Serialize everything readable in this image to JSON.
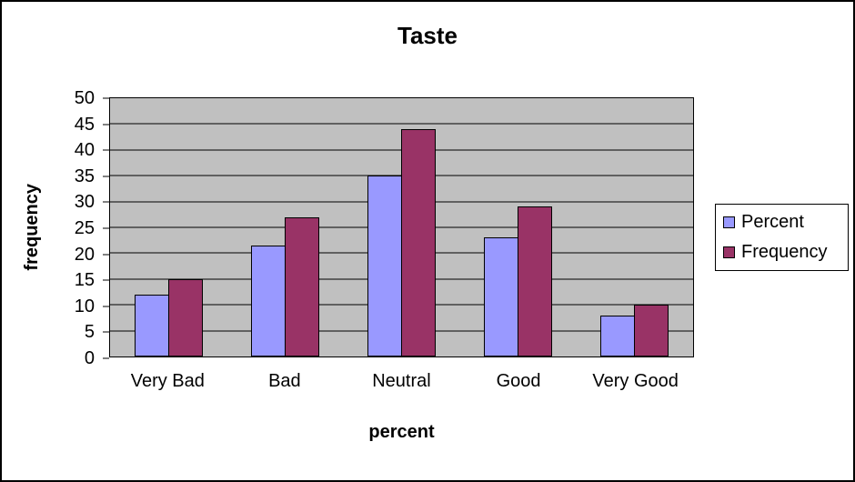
{
  "chart_data": {
    "type": "bar",
    "title": "Taste",
    "xlabel": "percent",
    "ylabel": "frequency",
    "categories": [
      "Very Bad",
      "Bad",
      "Neutral",
      "Good",
      "Very Good"
    ],
    "series": [
      {
        "name": "Percent",
        "color": "#9999FF",
        "values": [
          12,
          21.5,
          35,
          23,
          8
        ]
      },
      {
        "name": "Frequency",
        "color": "#993366",
        "values": [
          15,
          27,
          44,
          29,
          10
        ]
      }
    ],
    "ylim": [
      0,
      50
    ],
    "y_ticks": [
      0,
      5,
      10,
      15,
      20,
      25,
      30,
      35,
      40,
      45,
      50
    ],
    "grid": true,
    "legend_position": "right",
    "plot_bg": "#C0C0C0",
    "bar_border_color": "#000000"
  }
}
